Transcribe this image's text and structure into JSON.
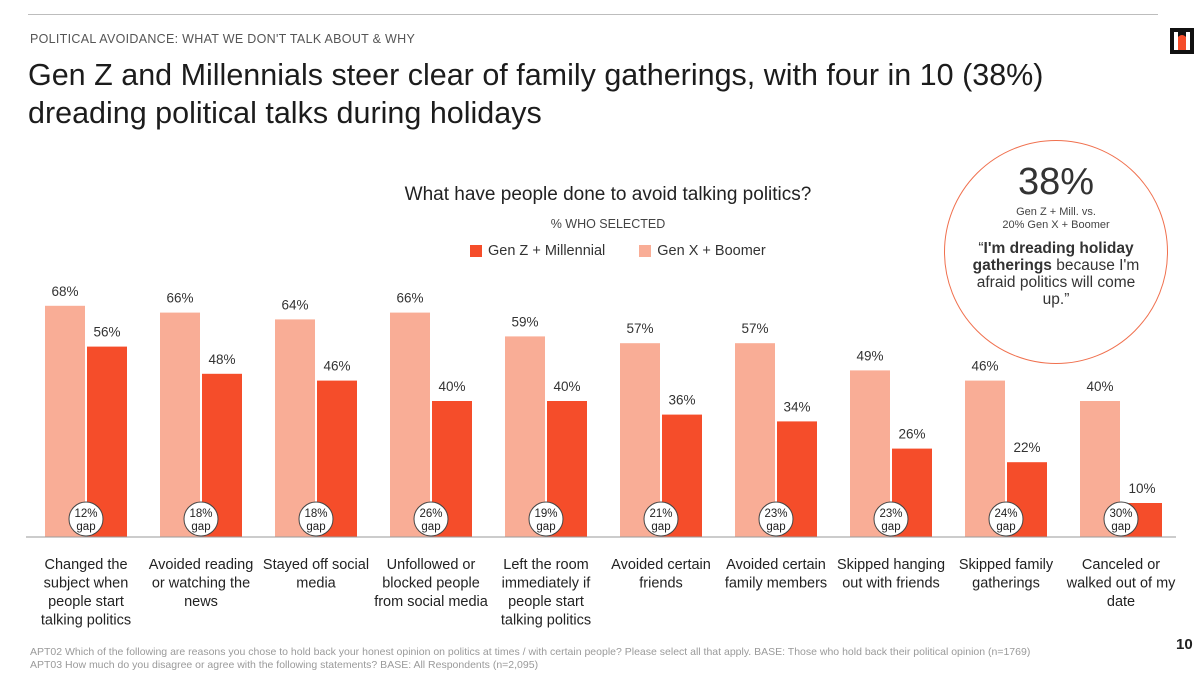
{
  "header": {
    "kicker": "POLITICAL AVOIDANCE: WHAT WE DON'T TALK ABOUT & WHY",
    "title": "Gen Z and Millennials steer clear of family gatherings, with four in 10 (38%) dreading political talks during holidays"
  },
  "callout": {
    "stat": "38%",
    "note": "Gen Z + Mill. vs.\n20% Gen X + Boomer",
    "quote_open": "“",
    "quote_bold": "I'm dreading holiday gatherings",
    "quote_rest": " because I'm afraid politics will come up.”"
  },
  "colors": {
    "genz": "#f54d2a",
    "genx": "#f9ad96",
    "callout_border": "#f0704e",
    "logo": "#f54d2a"
  },
  "logo_icon": "brand-logo-icon",
  "chart_data": {
    "type": "bar",
    "title": "What have people done to avoid talking politics?",
    "subtitle": "% WHO SELECTED",
    "categories": [
      "Changed the subject when people start talking politics",
      "Avoided reading or watching the news",
      "Stayed off social media",
      "Unfollowed or blocked people from social media",
      "Left the room immediately if people start talking politics",
      "Avoided certain friends",
      "Avoided certain family members",
      "Skipped hanging out with friends",
      "Skipped family gatherings",
      "Canceled or walked out of my date"
    ],
    "category_lines": [
      [
        "Changed the",
        "subject when",
        "people start",
        "talking politics"
      ],
      [
        "Avoided reading",
        "or watching the",
        "news"
      ],
      [
        "Stayed off social",
        "media"
      ],
      [
        "Unfollowed or",
        "blocked people",
        "from social media"
      ],
      [
        "Left the room",
        "immediately if",
        "people start",
        "talking politics"
      ],
      [
        "Avoided certain",
        "friends"
      ],
      [
        "Avoided certain",
        "family members"
      ],
      [
        "Skipped hanging",
        "out with friends"
      ],
      [
        "Skipped family",
        "gatherings"
      ],
      [
        "Canceled or",
        "walked out of my",
        "date"
      ]
    ],
    "series": [
      {
        "name": "Gen X + Boomer",
        "values": [
          68,
          66,
          64,
          66,
          59,
          57,
          57,
          49,
          46,
          40
        ]
      },
      {
        "name": "Gen Z + Millennial",
        "values": [
          56,
          48,
          46,
          40,
          40,
          36,
          34,
          26,
          22,
          10
        ]
      }
    ],
    "legend_order": [
      "Gen Z + Millennial",
      "Gen X + Boomer"
    ],
    "gaps": [
      "12%",
      "18%",
      "18%",
      "26%",
      "19%",
      "21%",
      "23%",
      "23%",
      "24%",
      "30%"
    ],
    "gap_word": "gap",
    "value_suffix": "%",
    "ylim": [
      0,
      100
    ]
  },
  "footnote": {
    "line1": "APT02 Which of the following are reasons you chose to hold back your honest opinion on politics at times / with certain people? Please select all that apply. BASE: Those who hold back their political opinion (n=1769)",
    "line2": "APT03 How much do you disagree or agree with the following statements? BASE: All Respondents (n=2,095)"
  },
  "page_number": "10"
}
